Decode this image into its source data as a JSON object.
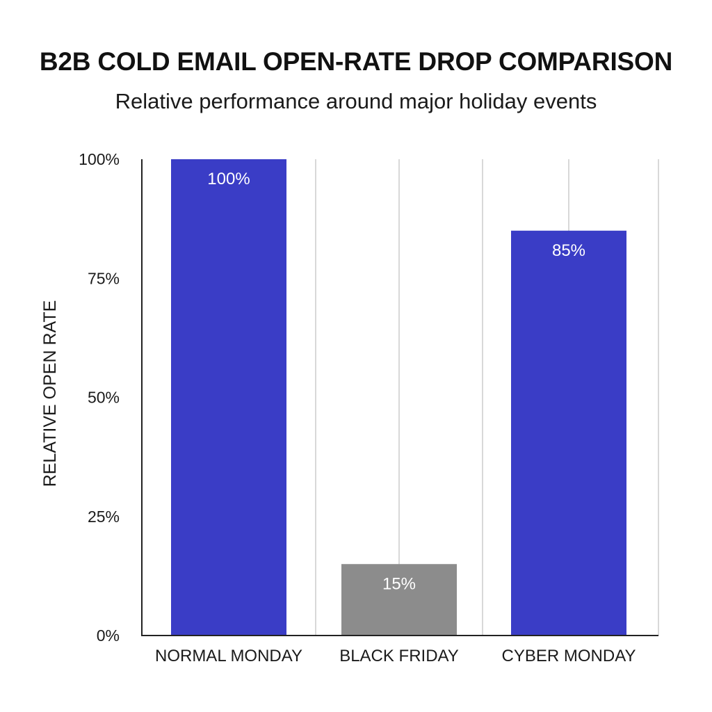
{
  "chart_data": {
    "type": "bar",
    "title": "B2B COLD EMAIL OPEN-RATE DROP COMPARISON",
    "subtitle": "Relative performance around major holiday events",
    "ylabel": "RELATIVE OPEN RATE",
    "xlabel": "",
    "ylim": [
      0,
      100
    ],
    "yticks": [
      0,
      25,
      50,
      75,
      100
    ],
    "ytick_labels": [
      "0%",
      "25%",
      "50%",
      "75%",
      "100%"
    ],
    "categories": [
      "NORMAL MONDAY",
      "BLACK FRIDAY",
      "CYBER MONDAY"
    ],
    "values": [
      100,
      15,
      85
    ],
    "data_labels": [
      "100%",
      "15%",
      "85%"
    ],
    "bar_colors": [
      "#3a3dc6",
      "#8c8c8c",
      "#3a3dc6"
    ],
    "grid": "vertical",
    "legend": "none"
  },
  "colors": {
    "axis": "#222222",
    "grid": "#bdbdbd",
    "label_on_bar": "#ffffff"
  }
}
